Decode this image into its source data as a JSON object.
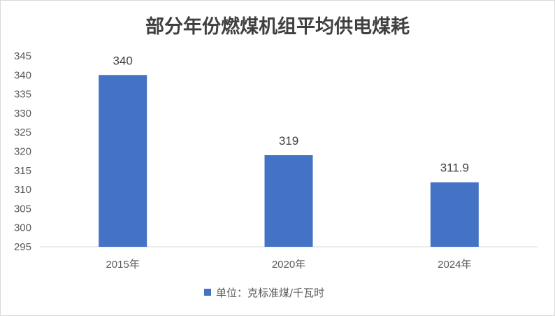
{
  "chart_data": {
    "type": "bar",
    "title": "部分年份燃煤机组平均供电煤耗",
    "categories": [
      "2015年",
      "2020年",
      "2024年"
    ],
    "series": [
      {
        "name": "单位：克标准煤/千瓦时",
        "values": [
          340,
          319,
          311.9
        ]
      }
    ],
    "data_labels": [
      "340",
      "319",
      "311.9"
    ],
    "y_ticks": [
      "295",
      "300",
      "305",
      "310",
      "315",
      "320",
      "325",
      "330",
      "335",
      "340",
      "345"
    ],
    "ylim": [
      295,
      345
    ],
    "ystep": 5,
    "grid": false,
    "legend_position": "bottom",
    "colors": {
      "bar": "#4472c4",
      "axis": "#d9d9d9"
    }
  }
}
